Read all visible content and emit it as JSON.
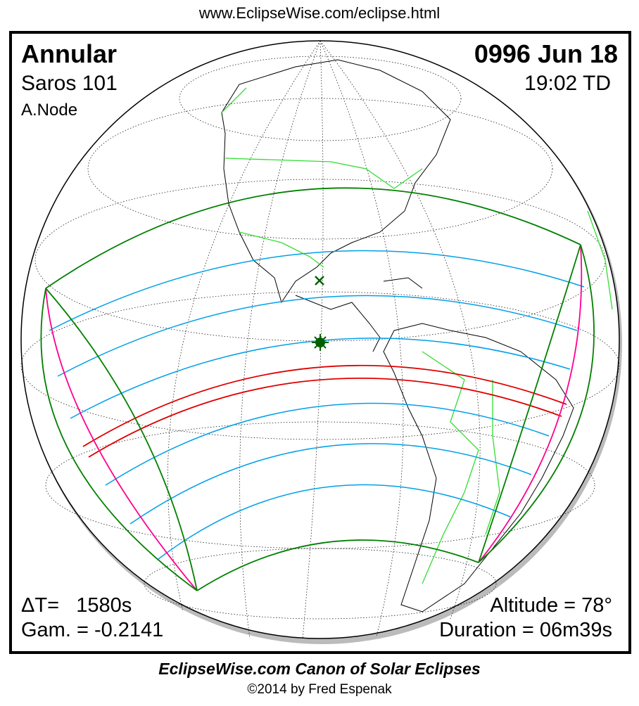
{
  "header": {
    "url": "www.EclipseWise.com/eclipse.html"
  },
  "eclipse": {
    "type": "Annular",
    "date": "0996 Jun 18",
    "saros": "Saros 101",
    "time": "19:02 TD",
    "node": "A.Node",
    "delta_t": "ΔT=   1580s",
    "gamma": "Gam. = -0.2141",
    "altitude": "Altitude = 78°",
    "duration": "Duration = 06m39s"
  },
  "footer": {
    "canon": "EclipseWise.com Canon of Solar Eclipses",
    "copyright": "©2014 by Fred Espenak"
  },
  "colors": {
    "central_path": "#e00000",
    "penumbral_limits": "#008000",
    "hourly_lines": "#00a0e8",
    "rise_set_curves": "#ff0090",
    "borders": "#33dd33"
  },
  "markers": {
    "greatest_eclipse": "star-icon",
    "sub_solar_point": "x-icon"
  }
}
